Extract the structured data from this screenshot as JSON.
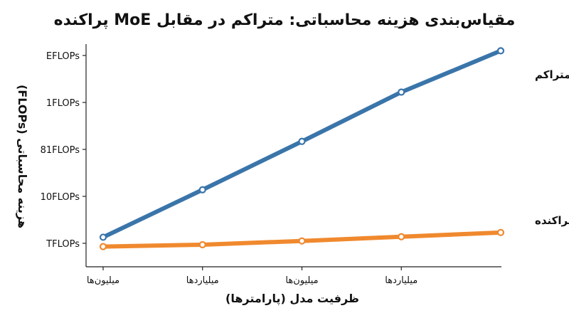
{
  "chart_data": {
    "type": "line",
    "title": "مقیاس‌بندی هزینه محاسباتی: متراکم در مقابل MoE پراکنده",
    "xlabel": "ظرفیت مدل (پارامترها)",
    "ylabel": "هزینه محاسباتی (FLOPs)",
    "x_ticks": [
      "میلیون‌ها",
      "میلیاردها",
      "میلیون‌ها",
      "میلیاردها"
    ],
    "y_ticks": [
      "TFLOPs",
      "10FLOPs",
      "81FLOPs",
      "1FLOPs",
      "EFLOPs"
    ],
    "xlim": [
      0,
      4
    ],
    "ylim": [
      0,
      4
    ],
    "grid": false,
    "series": [
      {
        "name": "مدل متراکم",
        "color": "#3a75aa",
        "x": [
          0,
          1,
          2,
          3,
          4
        ],
        "y": [
          0.13,
          1.14,
          2.17,
          3.22,
          4.1
        ]
      },
      {
        "name": "مدل MoE پراکنده",
        "color": "#f0892e",
        "x": [
          0,
          1,
          2,
          3,
          4
        ],
        "y": [
          -0.07,
          -0.03,
          0.05,
          0.14,
          0.23
        ]
      }
    ]
  }
}
